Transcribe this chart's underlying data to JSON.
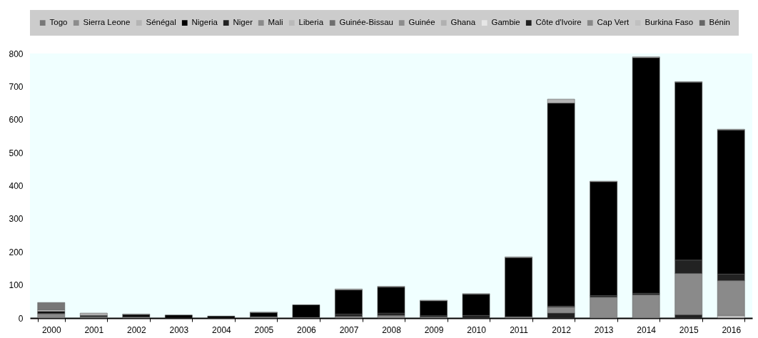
{
  "chart_data": {
    "type": "bar",
    "stacked": true,
    "legend": "top",
    "grid": false,
    "categories": [
      "2000",
      "2001",
      "2002",
      "2003",
      "2004",
      "2005",
      "2006",
      "2007",
      "2008",
      "2009",
      "2010",
      "2011",
      "2012",
      "2013",
      "2014",
      "2015",
      "2016"
    ],
    "ylim": [
      0,
      800
    ],
    "yticks": [
      0,
      100,
      200,
      300,
      400,
      500,
      600,
      700,
      800
    ],
    "series": [
      {
        "name": "Bénin",
        "color": "#666666",
        "values": [
          null,
          null,
          null,
          null,
          null,
          null,
          null,
          null,
          null,
          null,
          null,
          null,
          null,
          null,
          null,
          null,
          null
        ]
      },
      {
        "name": "Burkina Faso",
        "color": "#c0c0c0",
        "values": [
          null,
          null,
          null,
          null,
          null,
          null,
          null,
          null,
          null,
          null,
          null,
          null,
          null,
          null,
          null,
          null,
          8
        ]
      },
      {
        "name": "Cap Vert",
        "color": "#888888",
        "values": [
          null,
          null,
          null,
          null,
          null,
          null,
          null,
          null,
          null,
          null,
          null,
          null,
          null,
          null,
          null,
          null,
          null
        ]
      },
      {
        "name": "Côte d'Ivoire",
        "color": "#202020",
        "values": [
          null,
          null,
          null,
          null,
          null,
          null,
          null,
          null,
          null,
          null,
          null,
          null,
          15,
          null,
          null,
          10,
          null
        ]
      },
      {
        "name": "Gambie",
        "color": "#e6e6e6",
        "values": [
          null,
          null,
          null,
          null,
          null,
          null,
          null,
          null,
          null,
          null,
          null,
          null,
          null,
          null,
          null,
          null,
          null
        ]
      },
      {
        "name": "Ghana",
        "color": "#b0b0b0",
        "values": [
          null,
          null,
          null,
          null,
          null,
          null,
          null,
          null,
          null,
          null,
          null,
          null,
          null,
          null,
          null,
          null,
          null
        ]
      },
      {
        "name": "Guinée",
        "color": "#8c8c8c",
        "values": [
          null,
          null,
          null,
          null,
          null,
          null,
          null,
          null,
          null,
          null,
          null,
          null,
          null,
          null,
          null,
          null,
          null
        ]
      },
      {
        "name": "Guinée-Bissau",
        "color": "#6e6e6e",
        "values": [
          null,
          null,
          null,
          null,
          null,
          null,
          null,
          null,
          null,
          null,
          null,
          null,
          null,
          null,
          null,
          null,
          null
        ]
      },
      {
        "name": "Liberia",
        "color": "#b9b9b9",
        "values": [
          null,
          null,
          null,
          null,
          null,
          null,
          null,
          null,
          null,
          null,
          null,
          null,
          null,
          null,
          null,
          null,
          null
        ]
      },
      {
        "name": "Mali",
        "color": "#8a8a8a",
        "values": [
          13,
          3,
          3,
          null,
          null,
          4,
          2,
          5,
          8,
          3,
          null,
          4,
          18,
          63,
          70,
          125,
          105
        ]
      },
      {
        "name": "Niger",
        "color": "#222222",
        "values": [
          2,
          2,
          null,
          null,
          null,
          null,
          null,
          7,
          7,
          4,
          8,
          null,
          3,
          5,
          5,
          40,
          20
        ]
      },
      {
        "name": "Nigeria",
        "color": "#000000",
        "values": [
          5,
          3,
          7,
          9,
          6,
          12,
          38,
          73,
          79,
          45,
          64,
          179,
          614,
          344,
          712,
          538,
          436
        ]
      },
      {
        "name": "Sénégal",
        "color": "#b4b4b4",
        "values": [
          5,
          7,
          null,
          null,
          null,
          null,
          null,
          3,
          2,
          2,
          2,
          2,
          12,
          2,
          3,
          2,
          2
        ]
      },
      {
        "name": "Sierra Leone",
        "color": "#8c8c8c",
        "values": [
          null,
          null,
          null,
          null,
          null,
          null,
          null,
          null,
          null,
          null,
          null,
          null,
          null,
          null,
          null,
          null,
          null
        ]
      },
      {
        "name": "Togo",
        "color": "#777777",
        "values": [
          22,
          null,
          2,
          null,
          null,
          2,
          null,
          null,
          null,
          null,
          null,
          null,
          null,
          null,
          null,
          null,
          null
        ]
      }
    ]
  }
}
